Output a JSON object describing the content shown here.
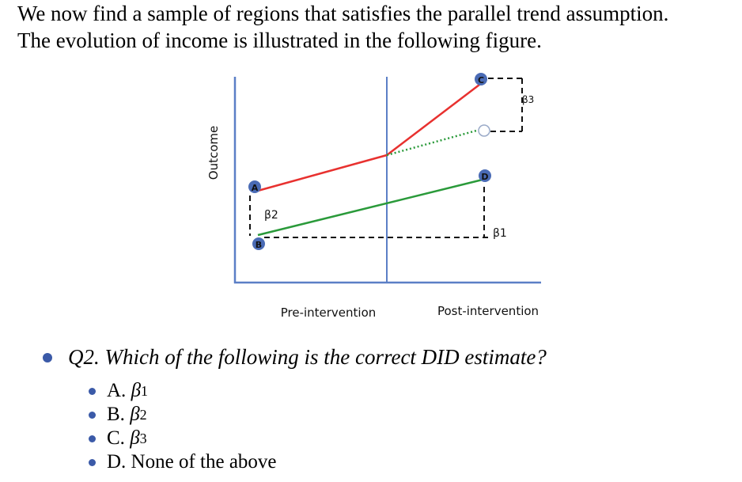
{
  "intro": {
    "line1": "We now find a sample of regions that satisfies the parallel trend assumption.",
    "line2": "The evolution of income is illustrated in the following figure."
  },
  "figure": {
    "y_axis_label": "Outcome",
    "x_label_pre": "Pre-intervention",
    "x_label_post": "Post-intervention",
    "point_labels": {
      "a": "A",
      "b": "B",
      "c": "C",
      "d": "D"
    },
    "annotations": {
      "beta1": "β1",
      "beta2": "β2",
      "beta3": "β3"
    },
    "colors": {
      "treatment": "#e8312f",
      "control": "#2a9a3a",
      "counterfactual": "#2a9a3a",
      "axis": "#5b7fc6",
      "marker": "#4a6bb5"
    }
  },
  "question": {
    "text": "Q2. Which of the following is the correct DID estimate?",
    "options": [
      {
        "letter": "A. ",
        "symbol": "β",
        "sub": "1"
      },
      {
        "letter": "B. ",
        "symbol": "β",
        "sub": "2"
      },
      {
        "letter": "C. ",
        "symbol": "β",
        "sub": "3"
      },
      {
        "letter": "D. None of the above",
        "symbol": "",
        "sub": ""
      }
    ]
  }
}
